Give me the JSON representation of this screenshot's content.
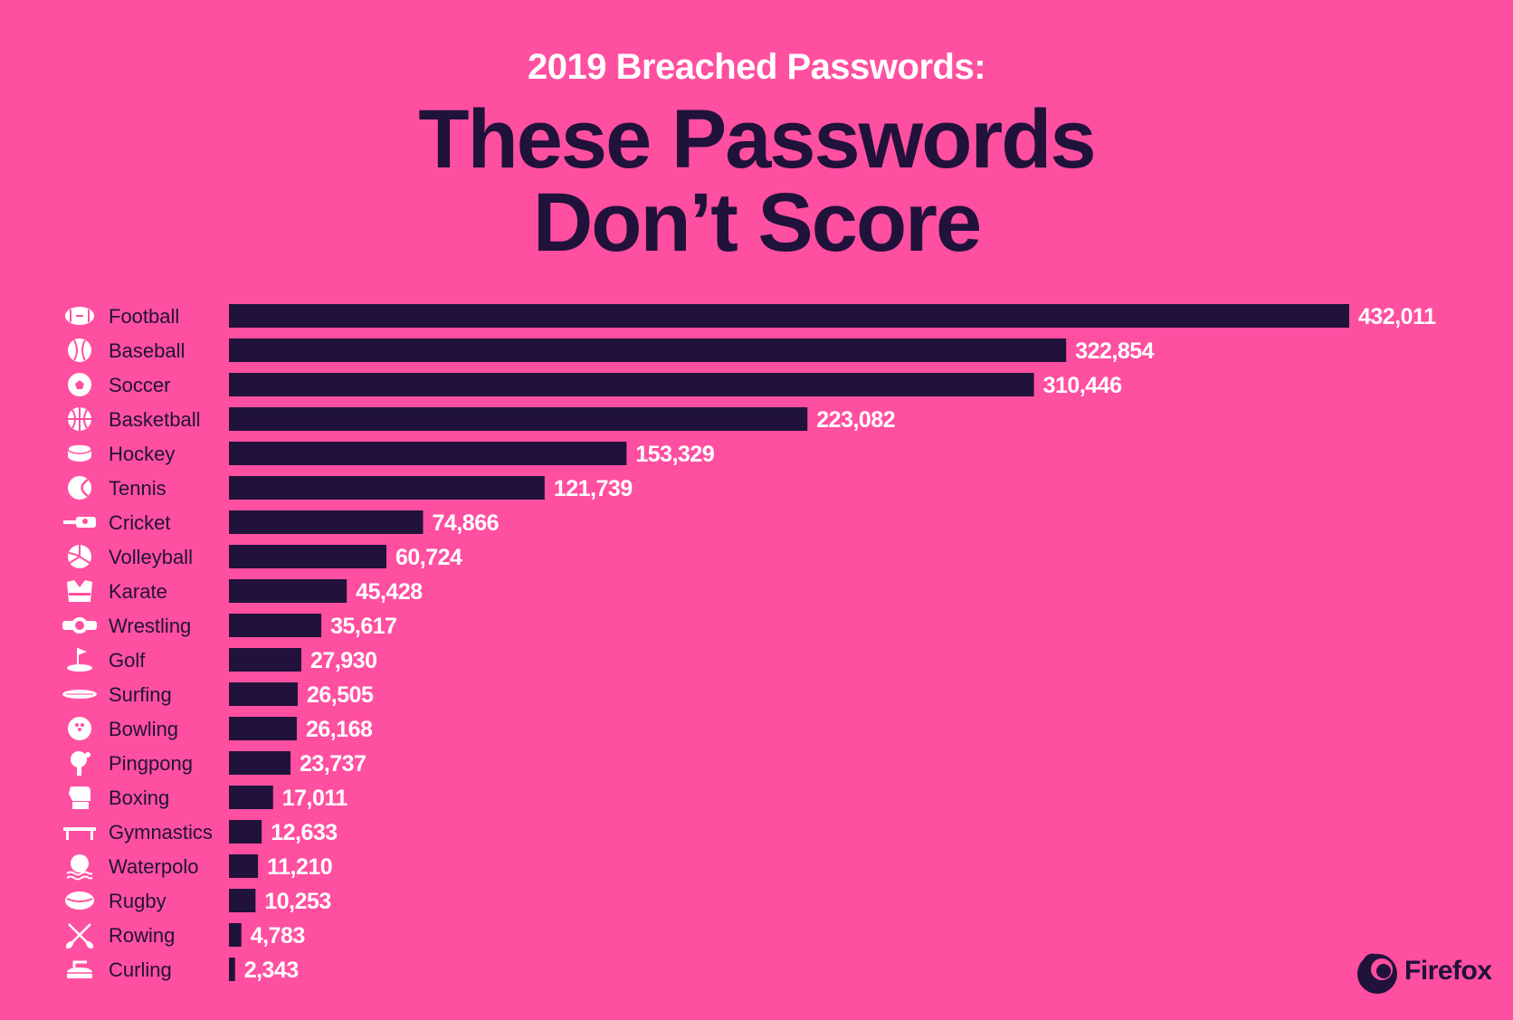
{
  "header": {
    "subtitle": "2019 Breached Passwords:",
    "title_line1": "These Passwords",
    "title_line2": "Don’t Score"
  },
  "brand": {
    "name": "Firefox"
  },
  "colors": {
    "background": "#ff4fa0",
    "bar": "#20123a",
    "label": "#20123a",
    "value": "#ffffff"
  },
  "chart_data": {
    "type": "bar",
    "orientation": "horizontal",
    "categories": [
      "Football",
      "Baseball",
      "Soccer",
      "Basketball",
      "Hockey",
      "Tennis",
      "Cricket",
      "Volleyball",
      "Karate",
      "Wrestling",
      "Golf",
      "Surfing",
      "Bowling",
      "Pingpong",
      "Boxing",
      "Gymnastics",
      "Waterpolo",
      "Rugby",
      "Rowing",
      "Curling"
    ],
    "values": [
      432011,
      322854,
      310446,
      223082,
      153329,
      121739,
      74866,
      60724,
      45428,
      35617,
      27930,
      26505,
      26168,
      23737,
      17011,
      12633,
      11210,
      10253,
      4783,
      2343
    ],
    "value_labels": [
      "432,011",
      "322,854",
      "310,446",
      "223,082",
      "153,329",
      "121,739",
      "74,866",
      "60,724",
      "45,428",
      "35,617",
      "27,930",
      "26,505",
      "26,168",
      "23,737",
      "17,011",
      "12,633",
      "11,210",
      "10,253",
      "4,783",
      "2,343"
    ],
    "icons": [
      "football-icon",
      "baseball-icon",
      "soccer-ball-icon",
      "basketball-icon",
      "hockey-puck-icon",
      "tennis-ball-icon",
      "cricket-bat-icon",
      "volleyball-icon",
      "karate-gi-icon",
      "wrestling-belt-icon",
      "golf-flag-icon",
      "surfboard-icon",
      "bowling-ball-icon",
      "pingpong-paddle-icon",
      "boxing-glove-icon",
      "gymnastics-beam-icon",
      "waterpolo-ball-icon",
      "rugby-ball-icon",
      "rowing-oars-icon",
      "curling-stone-icon"
    ],
    "title": "These Passwords Don’t Score",
    "subtitle": "2019 Breached Passwords:",
    "xlabel": "",
    "ylabel": "",
    "grid": false,
    "legend": "none",
    "xlim": [
      0,
      432011
    ]
  }
}
